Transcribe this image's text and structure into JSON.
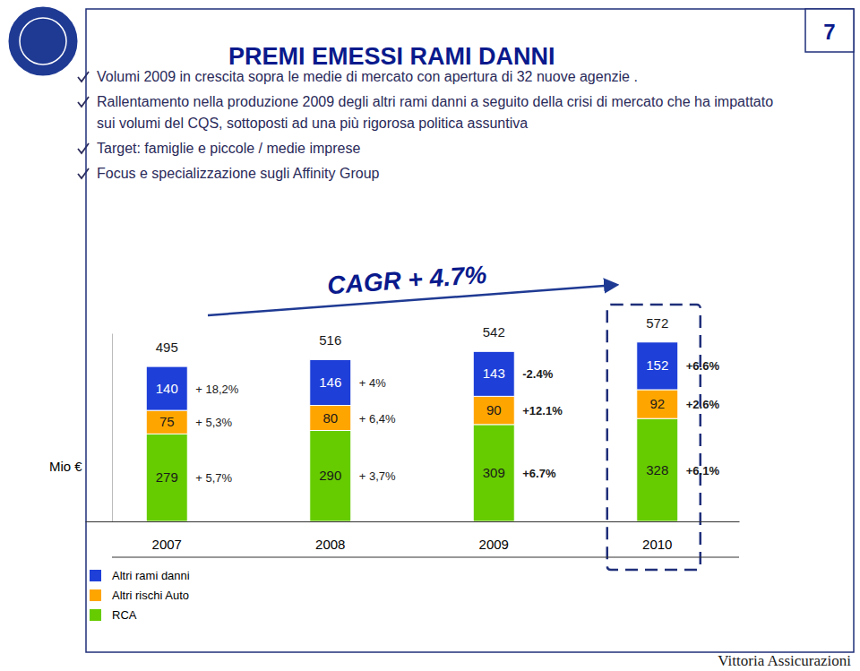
{
  "slide": {
    "title": "PREMI EMESSI RAMI DANNI",
    "page": "7",
    "bullets": [
      "Volumi 2009 in crescita sopra le medie di mercato con apertura di 32 nuove agenzie .",
      "Rallentamento nella produzione 2009 degli altri rami danni a seguito della crisi di mercato che ha impattato sui volumi del CQS, sottoposti ad una più rigorosa politica assuntiva",
      "Target: famiglie e piccole / medie imprese",
      "Focus e specializzazione sugli Affinity Group"
    ],
    "footer": "Vittoria Assicurazioni"
  },
  "chart_data": {
    "type": "bar",
    "stacked": true,
    "data_labels": true,
    "tick_labels": "x",
    "legend": "bottom-left",
    "unit_label": "Mio €",
    "annotation": "CAGR + 4.7%",
    "categories": [
      "2007",
      "2008",
      "2009",
      "2010"
    ],
    "ylim": [
      0,
      600
    ],
    "series": [
      {
        "name": "RCA",
        "color": "#66cc00",
        "values": [
          279,
          290,
          309,
          328
        ],
        "growth_labels": [
          "+ 5,7%",
          "+ 3,7%",
          "+6.7%",
          "+6.1%"
        ]
      },
      {
        "name": "Altri rischi Auto",
        "color": "#ffa500",
        "values": [
          75,
          80,
          90,
          92
        ],
        "growth_labels": [
          "+ 5,3%",
          "+ 6,4%",
          "+12.1%",
          "+2.6%"
        ]
      },
      {
        "name": "Altri rami danni",
        "color": "#1e3fd8",
        "values": [
          140,
          146,
          143,
          152
        ],
        "growth_labels": [
          "+ 18,2%",
          "+ 4%",
          "-2.4%",
          "+6.6%"
        ]
      }
    ],
    "totals": [
      495,
      516,
      542,
      572
    ]
  }
}
